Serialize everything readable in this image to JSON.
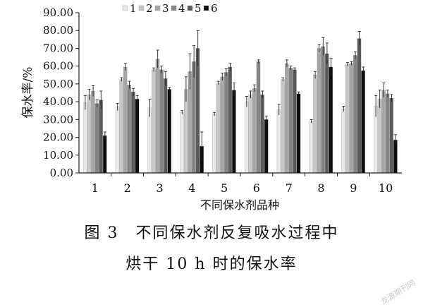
{
  "chart_data": {
    "type": "bar",
    "xlabel": "不同保水剂品种",
    "ylabel": "保水率/%",
    "categories": [
      "1",
      "2",
      "3",
      "4",
      "5",
      "6",
      "7",
      "8",
      "9",
      "10"
    ],
    "ylim": [
      0,
      90
    ],
    "yticks": [
      "0.00",
      "10.00",
      "20.00",
      "30.00",
      "40.00",
      "50.00",
      "60.00",
      "70.00",
      "80.00",
      "90.00"
    ],
    "legend_position": "top-left",
    "series": [
      {
        "name": "1",
        "color": "#e9e9e9",
        "values": [
          39.5,
          37.0,
          36.5,
          34.0,
          33.0,
          40.0,
          35.5,
          29.0,
          36.0,
          37.5
        ],
        "errors": [
          4,
          2,
          5,
          1,
          1,
          3,
          3,
          1,
          1.5,
          6
        ]
      },
      {
        "name": "2",
        "color": "#c8c8c8",
        "values": [
          44.0,
          52.5,
          58.0,
          47.0,
          50.5,
          44.0,
          52.5,
          55.0,
          61.0,
          41.5
        ],
        "errors": [
          3,
          1,
          1,
          7,
          1,
          2,
          1,
          2,
          1,
          5
        ]
      },
      {
        "name": "3",
        "color": "#a6a6a6",
        "values": [
          46.0,
          59.5,
          64.0,
          57.0,
          54.0,
          47.5,
          61.5,
          70.0,
          61.5,
          46.5
        ],
        "errors": [
          3,
          2,
          5,
          10,
          2,
          2,
          2,
          2,
          1,
          4
        ]
      },
      {
        "name": "4",
        "color": "#848484",
        "values": [
          39.0,
          49.5,
          58.0,
          62.5,
          56.5,
          62.5,
          59.0,
          71.0,
          66.0,
          44.5
        ],
        "errors": [
          2,
          2,
          2,
          9,
          2,
          1,
          1,
          5,
          2,
          2
        ]
      },
      {
        "name": "5",
        "color": "#5a5a5a",
        "values": [
          41.0,
          45.5,
          53.0,
          70.0,
          59.5,
          44.0,
          58.0,
          67.0,
          75.5,
          42.0
        ],
        "errors": [
          5,
          2,
          4,
          10,
          2,
          2,
          1,
          6,
          4,
          2
        ]
      },
      {
        "name": "6",
        "color": "#0d0d0d",
        "values": [
          21.0,
          41.5,
          47.0,
          15.0,
          46.5,
          30.0,
          44.5,
          59.5,
          57.5,
          18.5
        ],
        "errors": [
          2,
          2,
          1,
          8,
          4,
          2,
          1,
          5,
          2,
          3
        ]
      }
    ]
  },
  "caption": {
    "line1_label": "图 3",
    "line1_text": "不同保水剂反复吸水过程中",
    "line2_text": "烘干 10 h 时的保水率"
  },
  "watermark": "龙源期刊网"
}
